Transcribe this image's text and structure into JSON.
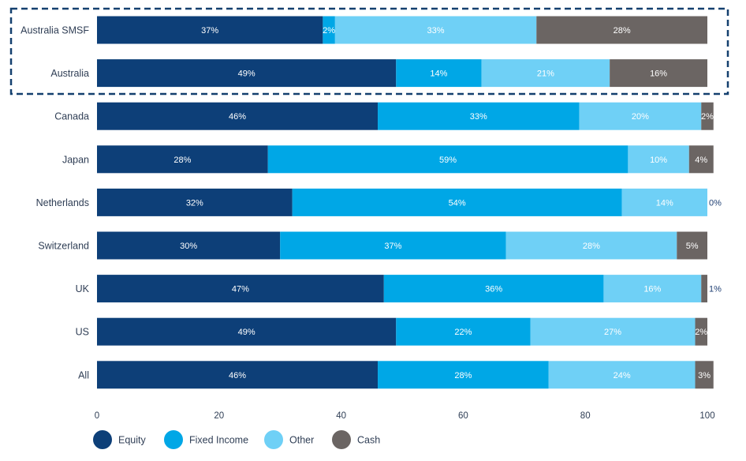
{
  "chart_data": {
    "type": "bar",
    "orientation": "horizontal",
    "stacked": true,
    "categories": [
      "Australia SMSF",
      "Australia",
      "Canada",
      "Japan",
      "Netherlands",
      "Switzerland",
      "UK",
      "US",
      "All"
    ],
    "series": [
      {
        "name": "Equity",
        "color": "#0d3f78",
        "values": [
          37,
          49,
          46,
          28,
          32,
          30,
          47,
          49,
          46
        ]
      },
      {
        "name": "Fixed Income",
        "color": "#00a7e6",
        "values": [
          2,
          14,
          33,
          59,
          54,
          37,
          36,
          22,
          28
        ]
      },
      {
        "name": "Other",
        "color": "#6fd0f6",
        "values": [
          33,
          21,
          20,
          10,
          14,
          28,
          16,
          27,
          24
        ]
      },
      {
        "name": "Cash",
        "color": "#6b6563",
        "values": [
          28,
          16,
          2,
          4,
          0,
          5,
          1,
          2,
          3
        ]
      }
    ],
    "labels": [
      [
        "37%",
        "2%",
        "33%",
        "28%"
      ],
      [
        "49%",
        "14%",
        "21%",
        "16%"
      ],
      [
        "46%",
        "33%",
        "20%",
        "2%"
      ],
      [
        "28%",
        "59%",
        "10%",
        "4%"
      ],
      [
        "32%",
        "54%",
        "14%",
        "0%"
      ],
      [
        "30%",
        "37%",
        "28%",
        "5%"
      ],
      [
        "47%",
        "36%",
        "16%",
        "1%"
      ],
      [
        "49%",
        "22%",
        "27%",
        "2%"
      ],
      [
        "46%",
        "28%",
        "24%",
        "3%"
      ]
    ],
    "xlim": [
      0,
      100
    ],
    "xticks": [
      0,
      20,
      40,
      60,
      80,
      100
    ],
    "grid": false,
    "legend_position": "bottom-left",
    "highlight": {
      "categories": [
        "Australia SMSF",
        "Australia"
      ],
      "style": "dashed-box",
      "color": "#14406f"
    }
  }
}
